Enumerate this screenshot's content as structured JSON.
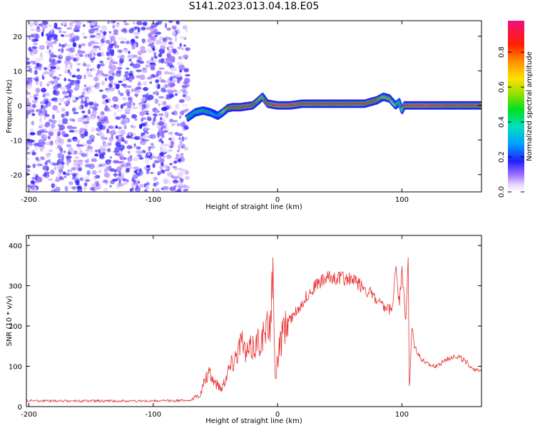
{
  "title": "S141.2023.013.04.18.E05",
  "chart_data": [
    {
      "type": "heatmap",
      "xlabel": "Height of straight line (km)",
      "ylabel": "Frequency (Hz)",
      "xlim": [
        -202,
        164
      ],
      "ylim": [
        -25,
        24.5
      ],
      "xticks": [
        -200,
        -100,
        0,
        100
      ],
      "yticks": [
        -20,
        -10,
        0,
        10,
        20
      ],
      "noise_region_x": [
        -202,
        -72
      ],
      "ridge": {
        "x": [
          -72,
          -66,
          -60,
          -54,
          -48,
          -44,
          -40,
          -36,
          -30,
          -20,
          -15,
          -12,
          -8,
          0,
          10,
          20,
          40,
          60,
          70,
          80,
          85,
          90,
          95,
          98,
          100,
          102,
          110,
          120,
          140,
          164
        ],
        "freq": [
          -3.5,
          -2,
          -1.5,
          -2,
          -3,
          -2,
          -0.8,
          -0.5,
          -0.5,
          0,
          1.5,
          2.5,
          0.5,
          0,
          0,
          0.5,
          0.5,
          0.5,
          0.5,
          1.5,
          2.5,
          2.0,
          0,
          1.0,
          -1.5,
          0,
          0,
          0,
          0,
          0
        ],
        "amp": [
          0.5,
          0.45,
          0.5,
          0.45,
          0.35,
          0.6,
          0.8,
          0.9,
          0.9,
          0.9,
          0.75,
          0.7,
          0.9,
          0.95,
          0.95,
          0.9,
          0.9,
          0.9,
          0.9,
          0.85,
          0.7,
          0.75,
          0.6,
          0.5,
          0.5,
          0.9,
          0.95,
          0.95,
          0.9,
          0.9
        ]
      },
      "colorbar": {
        "label": "Normalized spectral amplitude",
        "ticks": [
          "0.0",
          "0.2",
          "0.4",
          "0.6",
          "0.8"
        ],
        "ticks_values": [
          0.0,
          0.2,
          0.4,
          0.6,
          0.8
        ],
        "range": [
          0,
          0.98
        ]
      }
    },
    {
      "type": "line",
      "xlabel": "Height of straight line (km)",
      "ylabel": "SNR (10 * v/v)",
      "xlim": [
        -202,
        164
      ],
      "ylim": [
        0,
        425
      ],
      "xticks": [
        -200,
        -100,
        0,
        100
      ],
      "yticks": [
        0,
        100,
        200,
        300,
        400
      ],
      "grid": false,
      "color": "#e83030",
      "series": [
        {
          "x": [
            -202,
            -180,
            -160,
            -140,
            -120,
            -100,
            -80,
            -70,
            -62,
            -58,
            -55,
            -50,
            -45,
            -40,
            -35,
            -30,
            -25,
            -20,
            -15,
            -10,
            -6,
            -4,
            -3,
            -2,
            0,
            5,
            10,
            15,
            20,
            25,
            30,
            35,
            40,
            45,
            50,
            55,
            60,
            65,
            70,
            75,
            80,
            85,
            90,
            93,
            95,
            98,
            100,
            103,
            105,
            106,
            108,
            110,
            115,
            120,
            125,
            130,
            135,
            140,
            145,
            150,
            155,
            160,
            164
          ],
          "y": [
            15,
            14,
            14,
            14,
            14,
            14,
            15,
            16,
            30,
            70,
            80,
            60,
            45,
            90,
            120,
            160,
            130,
            150,
            165,
            180,
            210,
            330,
            200,
            60,
            120,
            190,
            215,
            235,
            260,
            280,
            300,
            310,
            318,
            322,
            320,
            318,
            315,
            305,
            295,
            280,
            262,
            245,
            240,
            250,
            360,
            250,
            355,
            200,
            380,
            30,
            200,
            150,
            120,
            105,
            100,
            105,
            115,
            125,
            125,
            115,
            100,
            90,
            85
          ]
        }
      ]
    }
  ]
}
